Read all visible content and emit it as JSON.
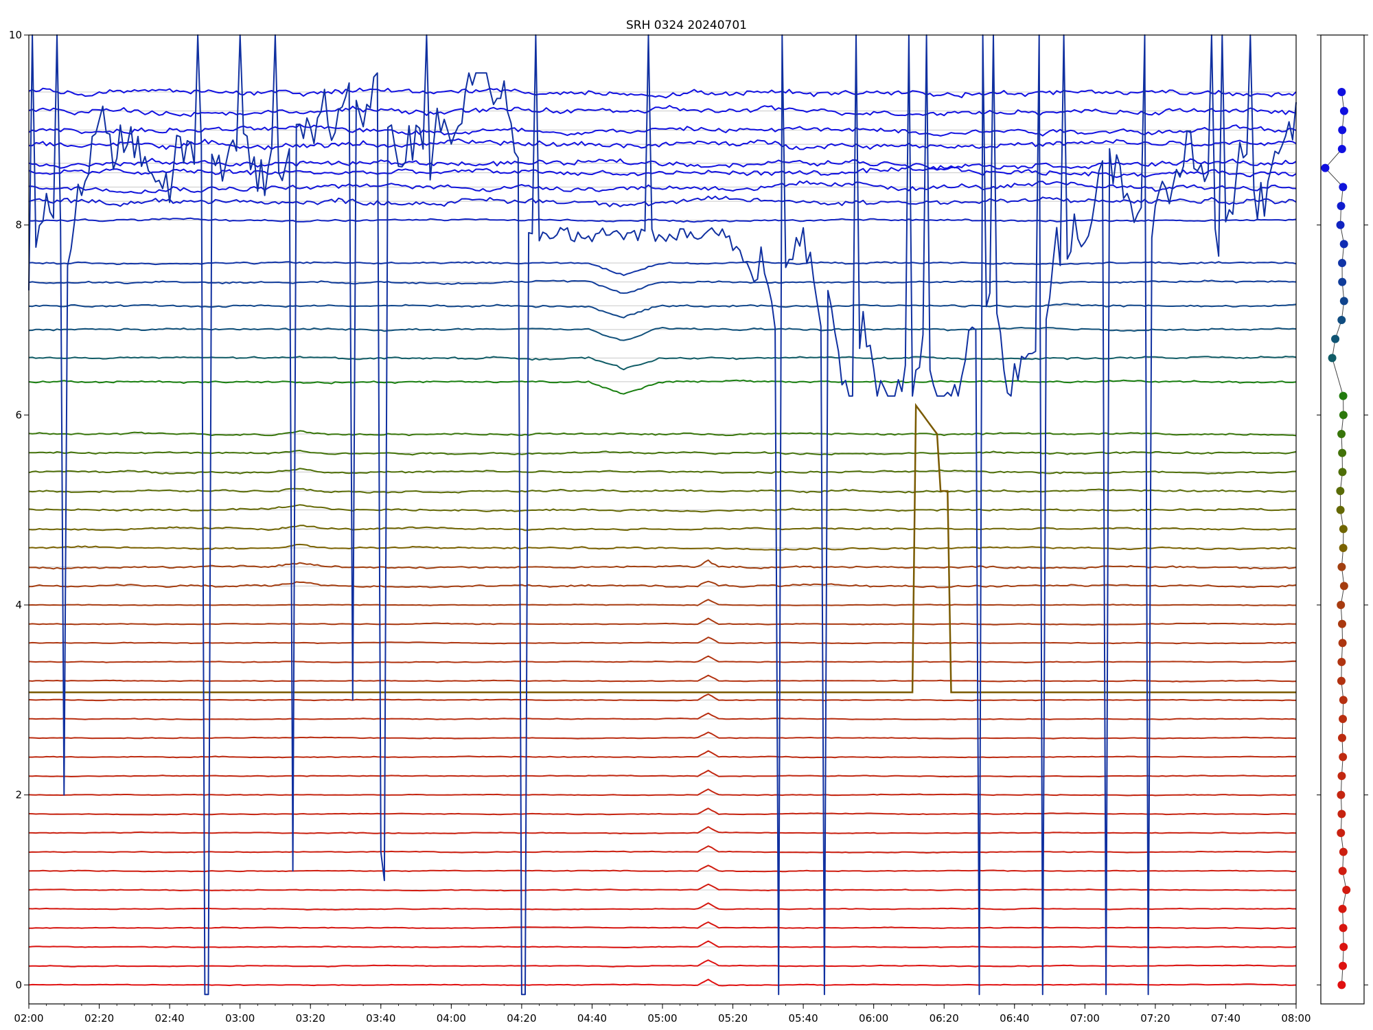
{
  "chart_data": {
    "type": "line",
    "title": "SRH 0324 20240701",
    "xlabel": "",
    "ylabel": "",
    "x_range": [
      "02:00",
      "08:00"
    ],
    "x_ticks": [
      "02:00",
      "02:20",
      "02:40",
      "03:00",
      "03:20",
      "03:40",
      "04:00",
      "04:20",
      "04:40",
      "05:00",
      "05:20",
      "05:40",
      "06:00",
      "06:20",
      "06:40",
      "07:00",
      "07:20",
      "07:40",
      "08:00"
    ],
    "ylim": [
      -0.2,
      10
    ],
    "y_ticks": [
      "0",
      "2",
      "4",
      "6",
      "8",
      "10"
    ],
    "grid": "horizontal lines at each trace baseline",
    "legend": "none",
    "colors": {
      "top_series": "#1010e0",
      "middle_series": "#108010",
      "bottom_series": "#e01010",
      "outlier_series": "#1030a0"
    },
    "series_count": 50,
    "series_baselines_bottom": [
      0.0,
      0.2,
      0.4,
      0.6,
      0.8,
      1.0,
      1.2,
      1.4,
      1.6,
      1.8,
      2.0,
      2.2,
      2.4,
      2.6,
      2.8,
      3.0,
      3.2,
      3.4,
      3.6,
      3.8,
      4.0,
      4.2,
      4.4,
      4.6,
      4.8,
      5.0,
      5.2,
      5.4,
      5.6,
      5.8
    ],
    "series_baselines_top": [
      6.35,
      6.6,
      6.9,
      7.15,
      7.4,
      7.6,
      8.05,
      8.25,
      8.4,
      8.55,
      8.65,
      8.85,
      9.0,
      9.2,
      9.4
    ],
    "events": [
      {
        "x": "04:50",
        "description": "dip in upper-middle traces"
      },
      {
        "x": "05:13",
        "description": "small peak in lower traces"
      },
      {
        "x": "06:12",
        "description": "step rise of one trace from about 3.1 to above 6"
      }
    ],
    "side_panel": {
      "type": "scatter",
      "points_y": [
        9.4,
        9.2,
        9.0,
        8.8,
        8.6,
        8.4,
        8.2,
        8.0,
        7.8,
        7.6,
        7.4,
        7.2,
        7.0,
        6.8,
        6.6,
        6.2,
        6.0,
        5.8,
        5.6,
        5.4,
        5.2,
        5.0,
        4.8,
        4.6,
        4.4,
        4.2,
        4.0,
        3.8,
        3.6,
        3.4,
        3.2,
        3.0,
        2.8,
        2.6,
        2.4,
        2.2,
        2.0,
        1.8,
        1.6,
        1.4,
        1.2,
        1.0,
        0.8,
        0.6,
        0.4,
        0.2,
        0.0
      ],
      "ylim": [
        -0.2,
        10
      ]
    }
  }
}
